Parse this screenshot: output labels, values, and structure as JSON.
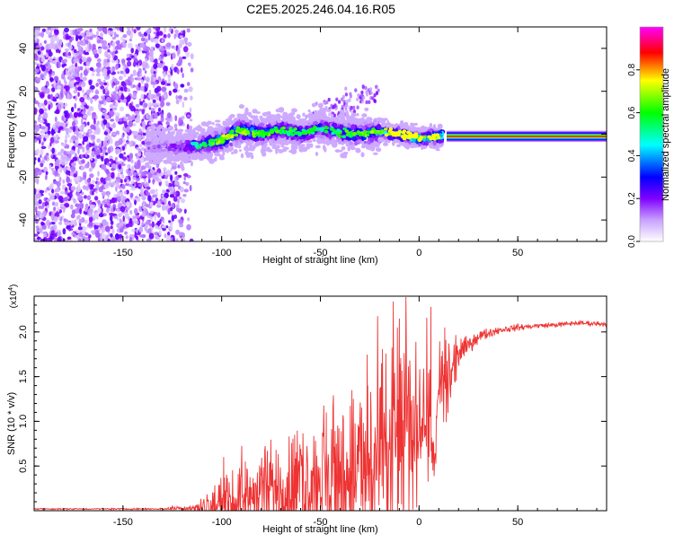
{
  "title": "C2E5.2025.246.04.16.R05",
  "chart_data": [
    {
      "type": "heatmap",
      "name": "spectrogram",
      "title": "C2E5.2025.246.04.16.R05",
      "xlabel": "Height of straight line (km)",
      "ylabel": "Frequency (Hz)",
      "xlim": [
        -195,
        95
      ],
      "ylim": [
        -50,
        50
      ],
      "xticks": [
        -150,
        -100,
        -50,
        0,
        50
      ],
      "yticks": [
        -40,
        -20,
        0,
        20,
        40
      ],
      "colorbar": {
        "label": "Normalized spectral amplitude",
        "range": [
          0.0,
          1.0
        ],
        "ticks": [
          "0.0",
          "0.2",
          "0.4",
          "0.6",
          "0.8"
        ],
        "colors": [
          "#ffffff",
          "#8000ff",
          "#0000ff",
          "#00ffff",
          "#00ff00",
          "#ffff00",
          "#ff0000",
          "#ff00ff"
        ]
      },
      "ridge": {
        "x": [
          -135,
          -120,
          -110,
          -100,
          -90,
          -80,
          -70,
          -60,
          -50,
          -40,
          -30,
          -20,
          -10,
          0,
          10,
          20,
          50,
          90
        ],
        "freq": [
          -6,
          -6,
          -5,
          -3,
          2,
          0,
          2,
          0,
          3,
          1,
          0,
          1,
          0,
          -2,
          -1,
          -1,
          -1,
          -1
        ],
        "amplitude": [
          0.15,
          0.2,
          0.3,
          0.45,
          0.45,
          0.4,
          0.35,
          0.35,
          0.3,
          0.35,
          0.4,
          0.45,
          0.6,
          0.6,
          0.75,
          0.85,
          0.85,
          0.8
        ]
      }
    },
    {
      "type": "line",
      "name": "snr",
      "xlabel": "Height of straight line (km)",
      "ylabel": "SNR (10 * v/v)",
      "scale_label": "(x10",
      "scale_exp": "4",
      "xlim": [
        -195,
        95
      ],
      "ylim": [
        0,
        2.4
      ],
      "xticks": [
        -150,
        -100,
        -50,
        0,
        50
      ],
      "yticks": [
        "0.5",
        "1.0",
        "1.5",
        "2.0"
      ],
      "color": "#ee3333",
      "envelope": {
        "x": [
          -195,
          -130,
          -115,
          -105,
          -95,
          -85,
          -75,
          -65,
          -55,
          -45,
          -35,
          -25,
          -15,
          -10,
          -5,
          0,
          5,
          8,
          10,
          15,
          20,
          25,
          30,
          40,
          50,
          60,
          70,
          80,
          95
        ],
        "base": [
          0.02,
          0.02,
          0.03,
          0.05,
          0.1,
          0.15,
          0.2,
          0.25,
          0.3,
          0.32,
          0.4,
          0.45,
          0.6,
          0.8,
          0.9,
          1.0,
          1.2,
          0.5,
          1.3,
          1.4,
          1.75,
          1.85,
          1.95,
          2.02,
          2.05,
          2.07,
          2.08,
          2.1,
          2.09
        ],
        "amp": [
          0.005,
          0.006,
          0.03,
          0.14,
          0.22,
          0.3,
          0.4,
          0.45,
          0.5,
          0.6,
          0.7,
          0.8,
          0.9,
          0.95,
          0.8,
          0.5,
          0.6,
          0.1,
          0.5,
          0.35,
          0.12,
          0.07,
          0.05,
          0.03,
          0.025,
          0.02,
          0.02,
          0.02,
          0.02
        ]
      },
      "peaks": [
        {
          "x": -99,
          "y": 0.6
        },
        {
          "x": -88,
          "y": 0.55
        },
        {
          "x": -63,
          "y": 0.85
        },
        {
          "x": -47,
          "y": 1.1
        },
        {
          "x": -34,
          "y": 1.35
        },
        {
          "x": -26,
          "y": 1.4
        },
        {
          "x": -11,
          "y": 2.05
        },
        {
          "x": -10,
          "y": 2.15
        },
        {
          "x": 6,
          "y": 2.28
        },
        {
          "x": 13,
          "y": 2.05
        }
      ],
      "dips": [
        {
          "x": 7,
          "y": 0.45
        }
      ]
    }
  ]
}
